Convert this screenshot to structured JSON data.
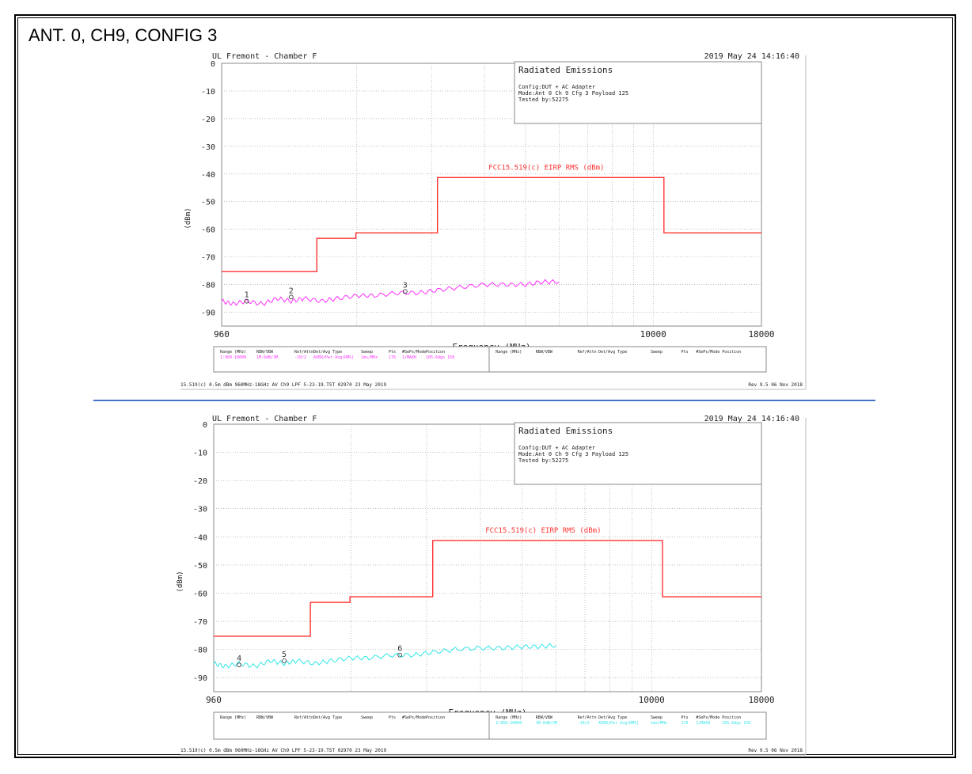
{
  "page_title": "ANT. 0, CH9, CONFIG 3",
  "colors": {
    "limit": "#ff3333",
    "trace1": "#ff33ff",
    "trace2": "#33e6e6",
    "grid": "#999999",
    "text": "#222222"
  },
  "charts": [
    {
      "header_left": "UL Fremont - Chamber F",
      "header_right": "2019 May 24    14:16:40",
      "info_title": "Radiated Emissions",
      "info_lines": [
        "Config:DUT + AC Adapter",
        "Mode:Ant 0 Ch 9 Cfg 3 Payload 125",
        "Tested by:52275"
      ],
      "limit_label": "FCC15.519(c) EIRP RMS (dBm)",
      "ylabel": "(dBm)",
      "xlabel": "Frequency (MHz)",
      "x_ticks": [
        "960",
        "10000",
        "18000"
      ],
      "y_ticks": [
        "0",
        "-10",
        "-20",
        "-30",
        "-40",
        "-50",
        "-60",
        "-70",
        "-80",
        "-90"
      ],
      "table_headers_left": [
        "Range (MHz)",
        "RBW/VBW",
        "Ref/Attn",
        "Det/Avg Type",
        "Sweep",
        "Pts",
        "#SePs/Mode",
        "Position"
      ],
      "table_values_left": [
        "1:960-10000",
        "1M-6dB/3M",
        "-10/2",
        "AVER/Pwr Avg(RMS)",
        "1ms/MHz",
        "176",
        "1/MAXH",
        "105.6dgs 150"
      ],
      "table_headers_right": [
        "Range (MHz)",
        "RBW/VBW",
        "Ref/Attn",
        "Det/Avg Type",
        "Sweep",
        "Pts",
        "#SePs/Mode",
        "Position"
      ],
      "table_values_right": [
        "",
        "",
        "",
        "",
        "",
        "",
        "",
        ""
      ],
      "footer_left": "15.519(c) 0.5m dBm 960MHz-18GHz AV Ch9 LPF 5-23-19.TST 02970 23 May 2019",
      "footer_right": "Rev 9.5 06 Nov 2018",
      "marker_labels": [
        "1",
        "2",
        "3"
      ]
    },
    {
      "header_left": "UL Fremont - Chamber F",
      "header_right": "2019 May 24    14:16:40",
      "info_title": "Radiated Emissions",
      "info_lines": [
        "Config:DUT + AC Adapter",
        "Mode:Ant 0 Ch 9 Cfg 3 Payload 125",
        "Tested by:52275"
      ],
      "limit_label": "FCC15.519(c) EIRP RMS (dBm)",
      "ylabel": "(dBm)",
      "xlabel": "Frequency (MHz)",
      "x_ticks": [
        "960",
        "10000",
        "18000"
      ],
      "y_ticks": [
        "0",
        "-10",
        "-20",
        "-30",
        "-40",
        "-50",
        "-60",
        "-70",
        "-80",
        "-90"
      ],
      "table_headers_left": [
        "Range (MHz)",
        "RBW/VBW",
        "Ref/Attn",
        "Det/Avg Type",
        "Sweep",
        "Pts",
        "#SePs/Mode",
        "Position"
      ],
      "table_values_left": [
        "",
        "",
        "",
        "",
        "",
        "",
        "",
        ""
      ],
      "table_headers_right": [
        "Range (MHz)",
        "RBW/VBW",
        "Ref/Attn",
        "Det/Avg Type",
        "Sweep",
        "Pts",
        "#SePs/Mode",
        "Position"
      ],
      "table_values_right": [
        "2:960-10000",
        "1M-6dB/3M",
        "-10/2",
        "AVER/Pwr Avg(RMS)",
        "1ms/MHz",
        "176",
        "1/MAXH",
        "105.6dgs 150"
      ],
      "footer_left": "15.519(c) 0.5m dBm 960MHz-18GHz AV Ch9 LPF 5-23-19.TST 02970 23 May 2019",
      "footer_right": "Rev 9.5 06 Nov 2018",
      "marker_labels": [
        "4",
        "5",
        "6"
      ]
    }
  ],
  "chart_data": [
    {
      "type": "line",
      "xlabel": "Frequency (MHz)",
      "ylabel": "(dBm)",
      "ylim": [
        -100,
        0
      ],
      "xlim": [
        960,
        18000
      ],
      "x_scale": "log",
      "grid": true,
      "series": [
        {
          "name": "FCC15.519(c) EIRP RMS (dBm)",
          "color": "#ff3333",
          "x": [
            960,
            1610,
            1610,
            1990,
            1990,
            3100,
            3100,
            10600,
            10600,
            18000
          ],
          "y": [
            -75.3,
            -75.3,
            -63.3,
            -63.3,
            -61.3,
            -61.3,
            -41.3,
            -41.3,
            -61.3,
            -61.3
          ]
        },
        {
          "color": "#ff33ff",
          "x": [
            960,
            1020,
            1100,
            1200,
            1300,
            1400,
            1500,
            1650,
            1800,
            2000,
            2200,
            2500,
            2800,
            3100,
            3500,
            4000,
            4500,
            5000,
            5500,
            6000
          ],
          "y": [
            -86,
            -87,
            -86,
            -87,
            -85,
            -86,
            -85,
            -86,
            -85,
            -84,
            -84,
            -83,
            -83,
            -82,
            -81,
            -80,
            -80,
            -80,
            -79,
            -79
          ]
        }
      ],
      "markers": [
        {
          "label": "1",
          "x": 1100,
          "y": -86
        },
        {
          "label": "2",
          "x": 1400,
          "y": -84.5
        },
        {
          "label": "3",
          "x": 2600,
          "y": -82.5
        }
      ]
    },
    {
      "type": "line",
      "xlabel": "Frequency (MHz)",
      "ylabel": "(dBm)",
      "ylim": [
        -100,
        0
      ],
      "xlim": [
        960,
        18000
      ],
      "x_scale": "log",
      "grid": true,
      "series": [
        {
          "name": "FCC15.519(c) EIRP RMS (dBm)",
          "color": "#ff3333",
          "x": [
            960,
            1610,
            1610,
            1990,
            1990,
            3100,
            3100,
            10600,
            10600,
            18000
          ],
          "y": [
            -75.3,
            -75.3,
            -63.3,
            -63.3,
            -61.3,
            -61.3,
            -41.3,
            -41.3,
            -61.3,
            -61.3
          ]
        },
        {
          "color": "#33e6e6",
          "x": [
            960,
            1020,
            1100,
            1200,
            1300,
            1400,
            1500,
            1650,
            1800,
            2000,
            2200,
            2500,
            2800,
            3100,
            3500,
            4000,
            4500,
            5000,
            5500,
            6000
          ],
          "y": [
            -85,
            -86,
            -85,
            -86,
            -84,
            -85,
            -84,
            -85,
            -84,
            -83,
            -83,
            -82,
            -82,
            -81,
            -80,
            -79.5,
            -79.5,
            -79,
            -79,
            -78.5
          ]
        }
      ],
      "markers": [
        {
          "label": "4",
          "x": 1100,
          "y": -85.5
        },
        {
          "label": "5",
          "x": 1400,
          "y": -84
        },
        {
          "label": "6",
          "x": 2600,
          "y": -82
        }
      ]
    }
  ]
}
